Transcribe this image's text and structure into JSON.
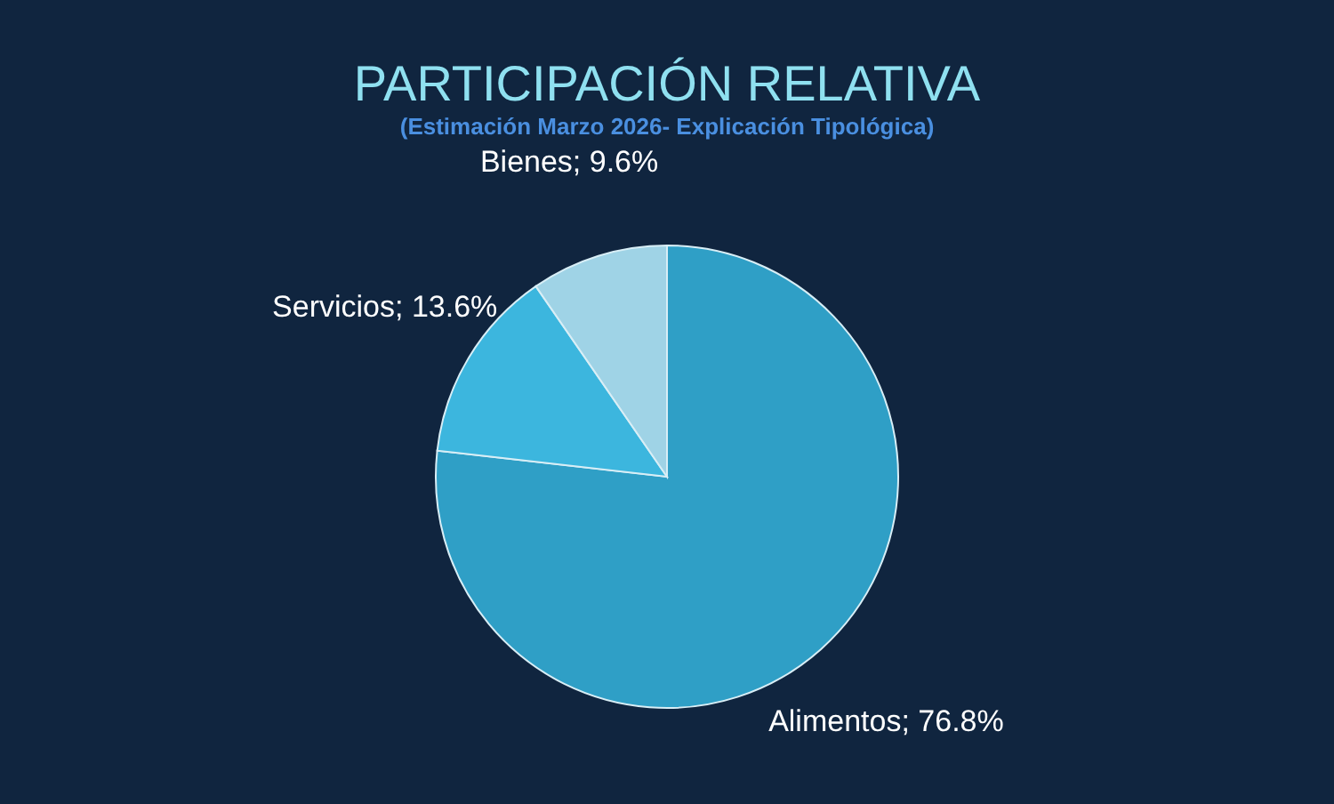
{
  "chart_data": {
    "type": "pie",
    "title": "PARTICIPACIÓN RELATIVA",
    "subtitle": "(Estimación Marzo 2026- Explicación Tipológica)",
    "categories": [
      "Alimentos",
      "Servicios",
      "Bienes"
    ],
    "values": [
      76.8,
      13.6,
      9.6
    ],
    "value_labels": [
      "76.8%",
      "13.6%",
      "9.6%"
    ],
    "colors": [
      "#2f9fc6",
      "#3cb6de",
      "#9fd3e6"
    ],
    "legend": false
  }
}
